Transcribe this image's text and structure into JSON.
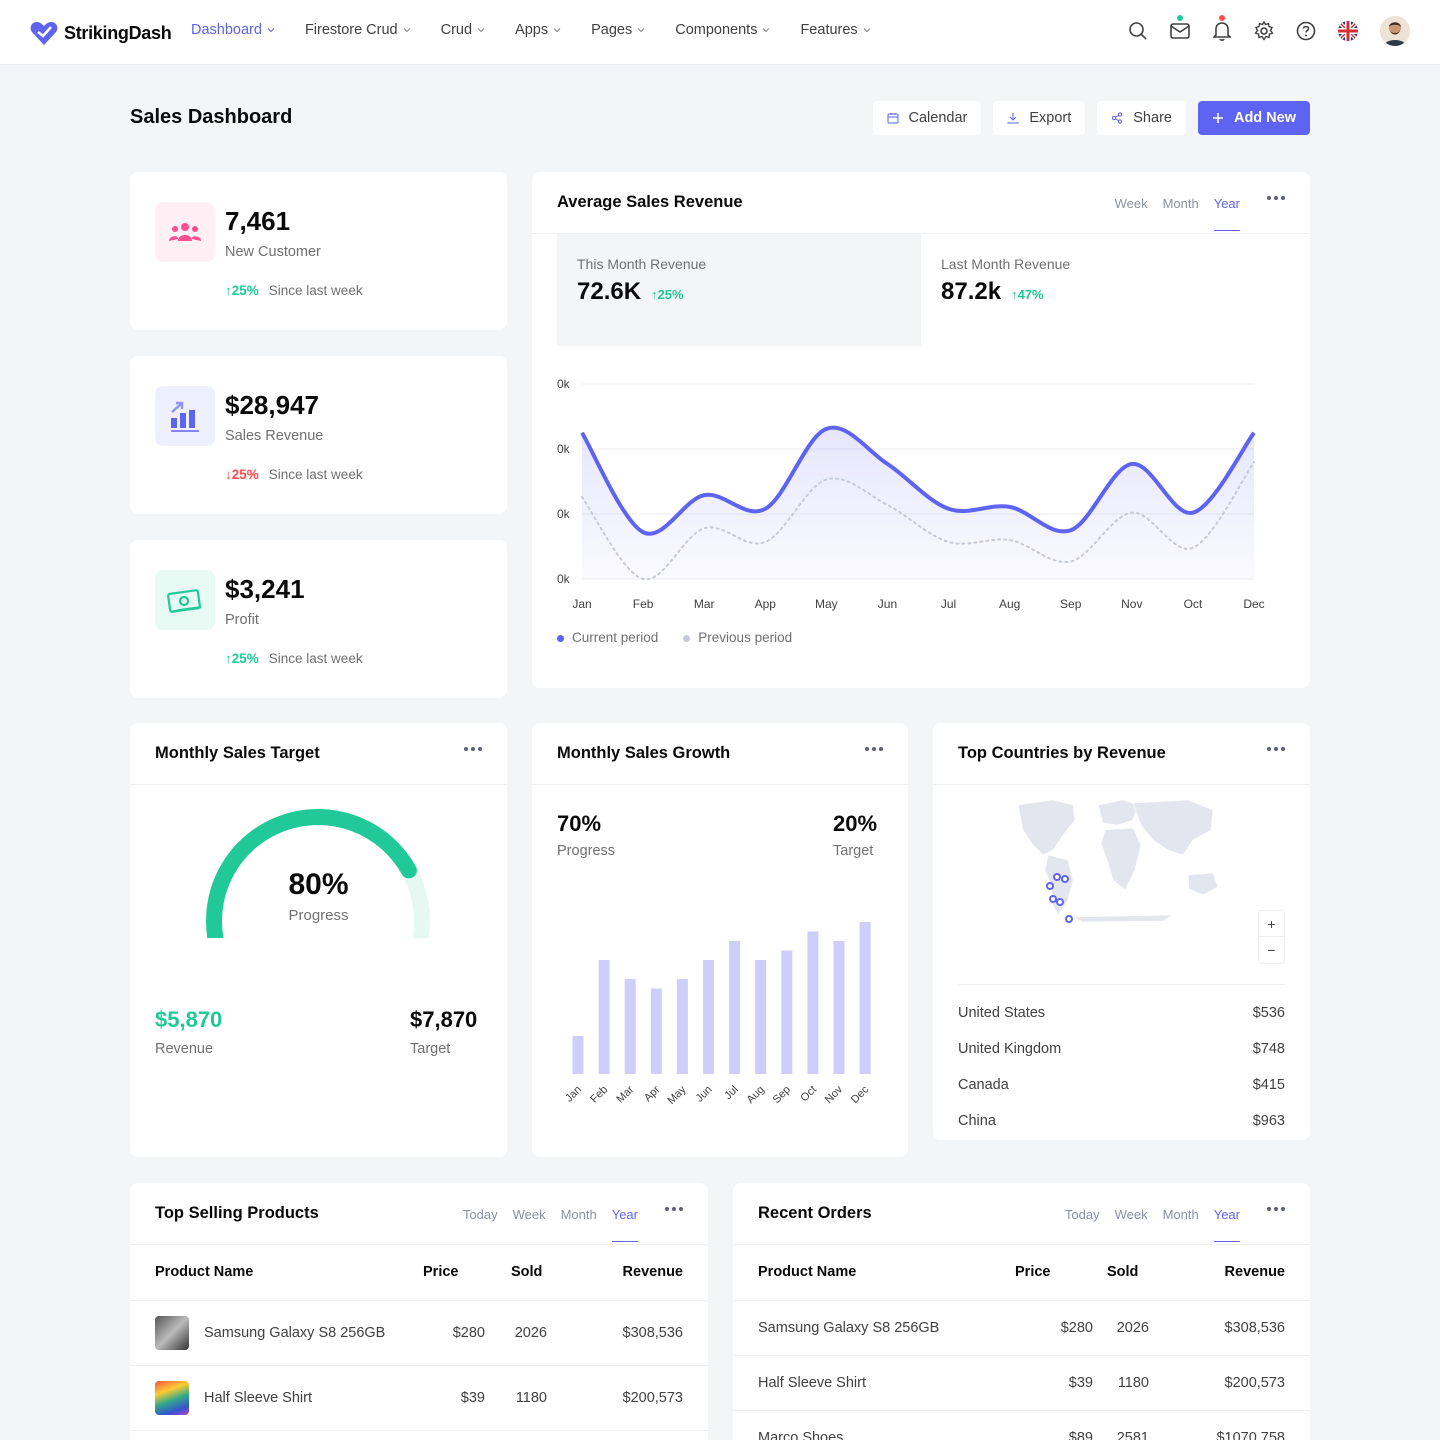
{
  "brand": {
    "name": "StrikingDash",
    "accent": "#5f63f2"
  },
  "nav": [
    {
      "label": "Dashboard",
      "active": true
    },
    {
      "label": "Firestore Crud"
    },
    {
      "label": "Crud"
    },
    {
      "label": "Apps"
    },
    {
      "label": "Pages"
    },
    {
      "label": "Components"
    },
    {
      "label": "Features"
    }
  ],
  "top_icons": [
    "search-icon",
    "mail-icon",
    "bell-icon",
    "gear-icon",
    "help-icon",
    "uk-flag-icon"
  ],
  "page": {
    "title": "Sales Dashboard"
  },
  "actions": {
    "calendar": "Calendar",
    "export": "Export",
    "share": "Share",
    "add_new": "Add New"
  },
  "stats": [
    {
      "value": "7,461",
      "label": "New Customer",
      "change": "25%",
      "direction": "up",
      "since": "Since last week"
    },
    {
      "value": "$28,947",
      "label": "Sales Revenue",
      "change": "25%",
      "direction": "down",
      "since": "Since last week"
    },
    {
      "value": "$3,241",
      "label": "Profit",
      "change": "25%",
      "direction": "up",
      "since": "Since last week"
    }
  ],
  "avg_revenue": {
    "title": "Average Sales Revenue",
    "tabs": [
      "Week",
      "Month",
      "Year"
    ],
    "active_tab": "Year",
    "this_month": {
      "label": "This Month Revenue",
      "value": "72.6K",
      "change": "25%"
    },
    "last_month": {
      "label": "Last Month Revenue",
      "value": "87.2k",
      "change": "47%"
    },
    "legend": {
      "current": "Current period",
      "previous": "Previous period"
    }
  },
  "chart_data": [
    {
      "type": "line",
      "x": [
        "Jan",
        "Feb",
        "Mar",
        "App",
        "May",
        "Jun",
        "Jul",
        "Aug",
        "Sep",
        "Nov",
        "Oct",
        "Dec"
      ],
      "y_tick_labels": [
        "0k",
        "0k",
        "0k",
        "0k"
      ],
      "ylim": [
        0,
        100
      ],
      "series": [
        {
          "name": "Current period",
          "values": [
            75,
            24,
            43,
            36,
            77,
            59,
            36,
            37,
            25,
            59,
            34,
            75
          ]
        },
        {
          "name": "Previous period",
          "values": [
            42,
            0,
            26,
            19,
            51,
            38,
            19,
            20,
            9,
            34,
            16,
            60
          ]
        }
      ],
      "grid": true,
      "legend_position": "bottom-left"
    },
    {
      "type": "bar",
      "categories": [
        "Jan",
        "Feb",
        "Mar",
        "Apr",
        "May",
        "Jun",
        "Jul",
        "Aug",
        "Sep",
        "Oct",
        "Nov",
        "Dec"
      ],
      "values": [
        20,
        60,
        50,
        45,
        50,
        60,
        70,
        60,
        65,
        75,
        70,
        80
      ],
      "ylim": [
        0,
        100
      ],
      "color": "#cfcdfa"
    },
    {
      "type": "gauge",
      "value": 80,
      "label": "Progress"
    }
  ],
  "sales_target": {
    "title": "Monthly Sales Target",
    "progress_pct": "80%",
    "progress_label": "Progress",
    "revenue": "$5,870",
    "revenue_label": "Revenue",
    "target": "$7,870",
    "target_label": "Target"
  },
  "sales_growth": {
    "title": "Monthly Sales Growth",
    "progress": "70%",
    "progress_label": "Progress",
    "target": "20%",
    "target_label": "Target"
  },
  "countries": {
    "title": "Top Countries by Revenue",
    "rows": [
      {
        "name": "United States",
        "value": "$536"
      },
      {
        "name": "United Kingdom",
        "value": "$748"
      },
      {
        "name": "Canada",
        "value": "$415"
      },
      {
        "name": "China",
        "value": "$963"
      }
    ]
  },
  "top_products": {
    "title": "Top Selling Products",
    "tabs": [
      "Today",
      "Week",
      "Month",
      "Year"
    ],
    "active_tab": "Year",
    "columns": [
      "Product Name",
      "Price",
      "Sold",
      "Revenue"
    ],
    "rows": [
      {
        "name": "Samsung Galaxy S8 256GB",
        "price": "$280",
        "sold": "2026",
        "revenue": "$308,536"
      },
      {
        "name": "Half Sleeve Shirt",
        "price": "$39",
        "sold": "1180",
        "revenue": "$200,573"
      }
    ]
  },
  "recent_orders": {
    "title": "Recent Orders",
    "tabs": [
      "Today",
      "Week",
      "Month",
      "Year"
    ],
    "active_tab": "Year",
    "columns": [
      "Product Name",
      "Price",
      "Sold",
      "Revenue"
    ],
    "rows": [
      {
        "name": "Samsung Galaxy S8 256GB",
        "price": "$280",
        "sold": "2026",
        "revenue": "$308,536"
      },
      {
        "name": "Half Sleeve Shirt",
        "price": "$39",
        "sold": "1180",
        "revenue": "$200,573"
      },
      {
        "name": "Marco Shoes",
        "price": "$89",
        "sold": "2581",
        "revenue": "$1070,758"
      }
    ]
  }
}
